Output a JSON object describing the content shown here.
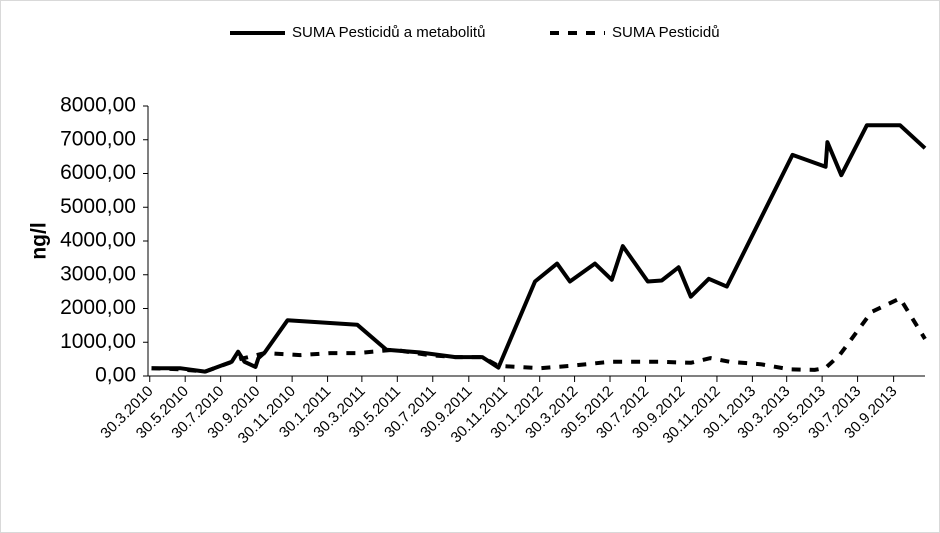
{
  "chart_data": {
    "type": "line",
    "y_label": "ng/l",
    "legend": "top",
    "series": [
      {
        "name": "SUMA Pesticidů a metabolitů",
        "color": "#000000",
        "dash": "solid",
        "x": [
          "2.4.2010",
          "21.5.2010",
          "3.7.2010",
          "18.8.2010",
          "29.8.2010",
          "9.9.2010",
          "28.9.2010",
          "3.10.2010",
          "14.10.2010",
          "22.11.2010",
          "22.3.2011",
          "11.5.2011",
          "7.7.2011",
          "7.9.2011",
          "23.10.2011",
          "20.11.2011",
          "22.1.2012",
          "29.2.2012",
          "22.3.2012",
          "4.5.2012",
          "2.6.2012",
          "21.6.2012",
          "3.8.2012",
          "27.8.2012",
          "25.9.2012",
          "16.10.2012",
          "16.11.2012",
          "17.12.2012",
          "9.4.2013",
          "5.6.2013",
          "8.6.2013",
          "2.7.2013",
          "15.8.2013",
          "11.10.2013",
          "23.11.2013"
        ],
        "values": [
          230,
          230,
          130,
          420,
          720,
          420,
          270,
          530,
          700,
          1650,
          1520,
          780,
          700,
          560,
          560,
          250,
          2800,
          3330,
          2800,
          3330,
          2850,
          3850,
          2800,
          2830,
          3220,
          2350,
          2880,
          2650,
          6550,
          6200,
          6930,
          5950,
          7430,
          7430,
          6750
        ]
      },
      {
        "name": "SUMA Pesticidů",
        "color": "#000000",
        "dash": "dashed",
        "x": [
          "2.4.2010",
          "21.5.2010",
          "3.7.2010",
          "1.9.2010",
          "14.10.2010",
          "14.12.2010",
          "4.2.2011",
          "22.3.2011",
          "25.5.2011",
          "24.7.2011",
          "7.9.2011",
          "23.10.2011",
          "20.11.2011",
          "31.1.2012",
          "22.3.2012",
          "30.5.2012",
          "24.8.2012",
          "16.10.2012",
          "19.11.2012",
          "22.12.2012",
          "13.2.2013",
          "4.4.2013",
          "17.5.2013",
          "5.6.2013",
          "29.6.2013",
          "23.8.2013",
          "11.10.2013",
          "23.11.2013"
        ],
        "values": [
          230,
          200,
          130,
          500,
          680,
          620,
          680,
          680,
          780,
          620,
          560,
          560,
          300,
          230,
          300,
          420,
          420,
          390,
          530,
          420,
          350,
          200,
          180,
          240,
          620,
          1900,
          2300,
          1100
        ]
      }
    ],
    "xlim": [
      "27.3.2010",
      "23.11.2013"
    ],
    "xticks": [
      "30.3.2010",
      "30.5.2010",
      "30.7.2010",
      "30.9.2010",
      "30.11.2010",
      "30.1.2011",
      "30.3.2011",
      "30.5.2011",
      "30.7.2011",
      "30.9.2011",
      "30.11.2011",
      "30.1.2012",
      "30.3.2012",
      "30.5.2012",
      "30.7.2012",
      "30.9.2012",
      "30.11.2012",
      "30.1.2013",
      "30.3.2013",
      "30.5.2013",
      "30.7.2013",
      "30.9.2013"
    ],
    "ylim": [
      0,
      8000
    ],
    "yticks": [
      {
        "value": 0,
        "label": "0,00"
      },
      {
        "value": 1000,
        "label": "1000,00"
      },
      {
        "value": 2000,
        "label": "2000,00"
      },
      {
        "value": 3000,
        "label": "3000,00"
      },
      {
        "value": 4000,
        "label": "4000,00"
      },
      {
        "value": 5000,
        "label": "5000,00"
      },
      {
        "value": 6000,
        "label": "6000,00"
      },
      {
        "value": 7000,
        "label": "7000,00"
      },
      {
        "value": 8000,
        "label": "8000,00"
      }
    ],
    "grid": false
  }
}
